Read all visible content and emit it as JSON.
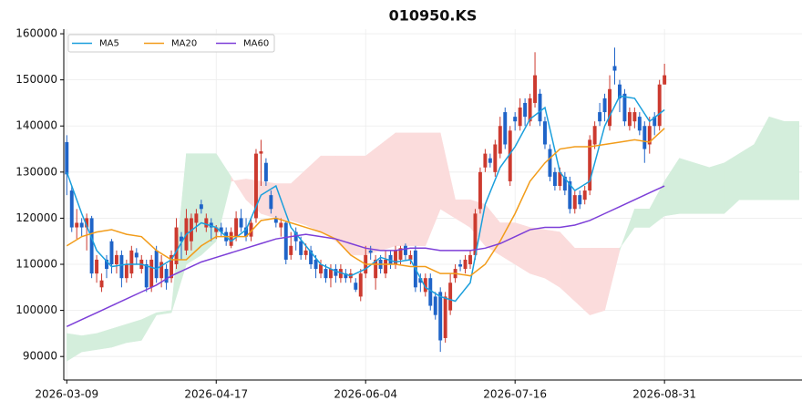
{
  "chart_data": {
    "type": "candlestick",
    "title": "010950.KS",
    "open": [
      136500,
      126000,
      118000,
      119000,
      118000,
      120000,
      108000,
      105000,
      111000,
      115000,
      110000,
      112000,
      107000,
      108000,
      112500,
      109000,
      110000,
      105000,
      113000,
      107000,
      109000,
      107000,
      110000,
      116000,
      113000,
      115000,
      119000,
      123000,
      118000,
      119000,
      117000,
      118000,
      117000,
      114000,
      116000,
      120000,
      118000,
      116000,
      120000,
      134000,
      132000,
      125000,
      120000,
      118000,
      119000,
      112000,
      117000,
      115000,
      112000,
      113000,
      111000,
      108000,
      109000,
      107000,
      109000,
      107000,
      108000,
      107000,
      106000,
      103000,
      108000,
      113000,
      107000,
      111000,
      108000,
      112000,
      110000,
      111000,
      114000,
      111000,
      113000,
      107000,
      104000,
      107000,
      103000,
      104000,
      94000,
      100000,
      107000,
      110000,
      109000,
      110000,
      112000,
      122000,
      131000,
      133000,
      130000,
      134000,
      143000,
      128000,
      142000,
      140000,
      145000,
      141000,
      145000,
      147000,
      141000,
      135000,
      130000,
      127000,
      129000,
      128000,
      122000,
      125000,
      124000,
      126000,
      136000,
      143000,
      146000,
      140000,
      153000,
      149000,
      147000,
      140000,
      141000,
      142000,
      140000,
      136000,
      142000,
      140000,
      149000
    ],
    "high": [
      138000,
      127000,
      122000,
      120000,
      121000,
      120500,
      112000,
      108000,
      112000,
      115500,
      113000,
      113000,
      111000,
      114000,
      113500,
      112000,
      111000,
      112000,
      114000,
      112000,
      110000,
      113000,
      120000,
      117000,
      122000,
      121000,
      122000,
      124000,
      121000,
      120000,
      118500,
      119000,
      118000,
      118000,
      121500,
      122000,
      120000,
      120000,
      135000,
      137000,
      133000,
      126000,
      120500,
      120000,
      119500,
      117000,
      118000,
      116000,
      114500,
      114000,
      112000,
      111000,
      110000,
      110000,
      110000,
      110000,
      109000,
      109000,
      107000,
      109000,
      114000,
      114000,
      112000,
      112000,
      113000,
      113000,
      114000,
      114000,
      114500,
      113000,
      114000,
      108000,
      108000,
      108000,
      104000,
      105000,
      104000,
      108000,
      110000,
      111000,
      112000,
      113000,
      122000,
      131000,
      135000,
      134000,
      137000,
      142000,
      144000,
      140000,
      143000,
      146000,
      146000,
      147000,
      156000,
      148000,
      142000,
      136000,
      131000,
      131000,
      130000,
      129000,
      126000,
      126000,
      127000,
      138000,
      141000,
      145000,
      147000,
      151000,
      157000,
      150000,
      148000,
      144000,
      144000,
      143000,
      141000,
      142000,
      143000,
      150000,
      153500
    ],
    "low": [
      125000,
      117000,
      115500,
      116000,
      113000,
      107000,
      106000,
      104000,
      107000,
      108000,
      108000,
      105000,
      106000,
      107000,
      110000,
      108000,
      104000,
      104000,
      106000,
      105000,
      104500,
      106000,
      109000,
      111000,
      112000,
      113000,
      117000,
      121000,
      117000,
      115000,
      115500,
      116000,
      114000,
      113500,
      115000,
      117000,
      115000,
      115000,
      119000,
      127000,
      127000,
      121000,
      118000,
      116000,
      110000,
      111000,
      113000,
      111000,
      111000,
      109000,
      107000,
      107000,
      106000,
      105000,
      106000,
      106000,
      106000,
      106000,
      104000,
      102000,
      107000,
      111000,
      104500,
      108000,
      107000,
      109000,
      109000,
      110000,
      111000,
      110000,
      104000,
      104000,
      103000,
      100000,
      98000,
      91000,
      93000,
      99000,
      106000,
      108500,
      108000,
      109000,
      111000,
      121000,
      130000,
      131000,
      129000,
      133000,
      135000,
      127000,
      139000,
      139000,
      140000,
      140000,
      144000,
      140000,
      135000,
      128000,
      126000,
      126000,
      125000,
      121000,
      121000,
      122000,
      123000,
      125000,
      135000,
      140000,
      141000,
      139000,
      149000,
      143000,
      140000,
      139000,
      139500,
      138000,
      132000,
      134000,
      138000,
      139000,
      149000
    ],
    "close": [
      129500,
      118000,
      119000,
      118000,
      120000,
      108000,
      111000,
      106500,
      109000,
      110000,
      112000,
      107000,
      110000,
      113000,
      111500,
      111000,
      105000,
      111000,
      107000,
      110500,
      106000,
      112000,
      118000,
      115000,
      120000,
      120000,
      121000,
      122000,
      120000,
      118000,
      118000,
      117000,
      115000,
      117000,
      120000,
      118000,
      116000,
      119000,
      134000,
      134500,
      128000,
      122000,
      119000,
      119000,
      111000,
      114000,
      115000,
      112000,
      113000,
      110000,
      109000,
      110000,
      107000,
      109000,
      107500,
      109000,
      107000,
      108000,
      104500,
      108000,
      112000,
      112500,
      111000,
      109000,
      111000,
      110000,
      113000,
      113500,
      112000,
      112000,
      105000,
      106000,
      107000,
      101000,
      99000,
      93500,
      103000,
      106000,
      109000,
      109500,
      111000,
      112000,
      121000,
      130000,
      134000,
      132000,
      136000,
      140000,
      136000,
      139000,
      141000,
      144000,
      142000,
      146000,
      151000,
      141000,
      136000,
      129000,
      127000,
      130000,
      126000,
      122000,
      125000,
      123000,
      126000,
      137000,
      140000,
      141000,
      143000,
      148000,
      152000,
      146000,
      141000,
      143000,
      143000,
      139000,
      135000,
      140000,
      140000,
      149000,
      151000
    ],
    "up_color": "#cc3a2f",
    "down_color": "#1f64c8",
    "series": [
      {
        "name": "MA5",
        "color": "#1b9fdc",
        "x": [
          0,
          3,
          6,
          9,
          12,
          15,
          18,
          21,
          24,
          27,
          30,
          33,
          36,
          39,
          42,
          45,
          48,
          51,
          54,
          57,
          60,
          63,
          66,
          69,
          72,
          75,
          78,
          81,
          84,
          87,
          90,
          93,
          96,
          99,
          102,
          105,
          108,
          111,
          114,
          117,
          120
        ],
        "values": [
          130000,
          121000,
          113000,
          109500,
          110000,
          110000,
          109000,
          111000,
          116500,
          119000,
          118000,
          115000,
          117500,
          125000,
          127000,
          118000,
          114000,
          110000,
          108500,
          107500,
          109000,
          111500,
          110500,
          111000,
          105000,
          103000,
          102000,
          106000,
          123000,
          131000,
          135500,
          141500,
          144000,
          130000,
          126000,
          128000,
          140000,
          146500,
          146000,
          141000,
          143500
        ]
      },
      {
        "name": "MA20",
        "color": "#f29c1a",
        "x": [
          0,
          3,
          6,
          9,
          12,
          15,
          18,
          21,
          24,
          27,
          30,
          33,
          36,
          39,
          42,
          45,
          48,
          51,
          54,
          57,
          60,
          63,
          66,
          69,
          72,
          75,
          78,
          81,
          84,
          87,
          90,
          93,
          96,
          99,
          102,
          105,
          108,
          111,
          114,
          117,
          120
        ],
        "values": [
          114000,
          116000,
          117000,
          117500,
          116500,
          116000,
          113000,
          111000,
          111000,
          114000,
          116000,
          116000,
          116000,
          119500,
          120000,
          119000,
          118000,
          117000,
          115500,
          112000,
          110000,
          110000,
          110000,
          109500,
          109500,
          108000,
          108000,
          107500,
          110000,
          115000,
          121000,
          128000,
          132000,
          135000,
          135500,
          135500,
          136000,
          136500,
          137000,
          136500,
          139500
        ]
      },
      {
        "name": "MA60",
        "color": "#7d3fd8",
        "x": [
          0,
          3,
          6,
          9,
          12,
          15,
          18,
          21,
          24,
          27,
          30,
          33,
          36,
          39,
          42,
          45,
          48,
          51,
          54,
          57,
          60,
          63,
          66,
          69,
          72,
          75,
          78,
          81,
          84,
          87,
          90,
          93,
          96,
          99,
          102,
          105,
          108,
          111,
          114,
          117,
          120
        ],
        "values": [
          96500,
          98000,
          99500,
          101000,
          102500,
          104000,
          105500,
          107500,
          109000,
          110500,
          111500,
          112500,
          113500,
          114500,
          115500,
          116000,
          116500,
          116000,
          115500,
          114500,
          113500,
          113000,
          113000,
          113500,
          113500,
          113000,
          113000,
          113000,
          113500,
          114500,
          116000,
          117500,
          118000,
          118000,
          118500,
          119500,
          121000,
          122500,
          124000,
          125500,
          127000
        ]
      }
    ],
    "cloud": {
      "x": [
        0,
        3,
        6,
        9,
        12,
        15,
        18,
        21,
        24,
        27,
        30,
        33,
        36,
        39,
        42,
        45,
        48,
        51,
        54,
        57,
        60,
        63,
        66,
        69,
        72,
        75,
        78,
        81,
        84,
        87,
        90,
        93,
        96,
        99,
        102,
        105,
        108,
        111,
        114,
        117,
        120,
        123,
        126,
        129,
        132,
        135,
        138,
        141,
        144,
        147
      ],
      "span_a": [
        95000,
        94500,
        95000,
        96000,
        97000,
        98000,
        99500,
        100000,
        134000,
        134000,
        134000,
        129000,
        124000,
        121000,
        120000,
        119500,
        118500,
        117000,
        115000,
        112000,
        112000,
        113000,
        114000,
        114000,
        114000,
        122000,
        120000,
        118000,
        114000,
        112000,
        110000,
        108000,
        107000,
        105000,
        102000,
        99000,
        100000,
        113000,
        122000,
        122000,
        128000,
        133000,
        132000,
        131000,
        132000,
        134000,
        136000,
        142000,
        141000,
        141000
      ],
      "span_b": [
        89000,
        91000,
        91500,
        92000,
        93000,
        93500,
        99000,
        99500,
        110000,
        112000,
        115000,
        128000,
        128500,
        128000,
        127500,
        127500,
        130500,
        133500,
        133500,
        133500,
        133500,
        136000,
        138500,
        138500,
        138500,
        138500,
        124000,
        124000,
        123000,
        119000,
        119000,
        118000,
        117500,
        117000,
        113500,
        113500,
        113500,
        113500,
        118000,
        118000,
        120500,
        121000,
        121000,
        121000,
        121000,
        124000,
        124000,
        124000,
        124000,
        124000
      ],
      "colors": [
        "#d4eedc",
        "#fbdcdc"
      ]
    },
    "xlim": [
      -0.6,
      147.6
    ],
    "xticks": [
      {
        "value": 0,
        "label": "2026-03-09"
      },
      {
        "value": 30,
        "label": "2026-04-17"
      },
      {
        "value": 60,
        "label": "2026-06-04"
      },
      {
        "value": 90,
        "label": "2026-07-16"
      },
      {
        "value": 120,
        "label": "2026-08-31"
      }
    ],
    "ylim": [
      84900,
      161000
    ],
    "yticks": [
      90000,
      100000,
      110000,
      120000,
      130000,
      140000,
      150000,
      160000
    ],
    "grid": true,
    "legend": "upper left"
  }
}
